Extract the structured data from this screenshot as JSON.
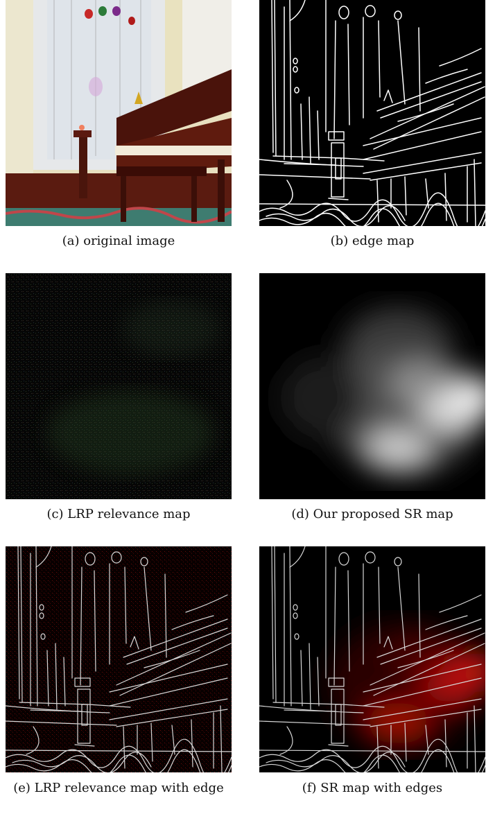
{
  "figure": {
    "panels": [
      {
        "id": "a",
        "caption": "(a) original image"
      },
      {
        "id": "b",
        "caption": "(b) edge map"
      },
      {
        "id": "c",
        "caption": "(c) LRP relevance map"
      },
      {
        "id": "d",
        "caption": "(d) Our proposed SR map"
      },
      {
        "id": "e",
        "caption": "(e) LRP relevance map with edge"
      },
      {
        "id": "f",
        "caption": "(f) SR map with edges"
      }
    ]
  }
}
